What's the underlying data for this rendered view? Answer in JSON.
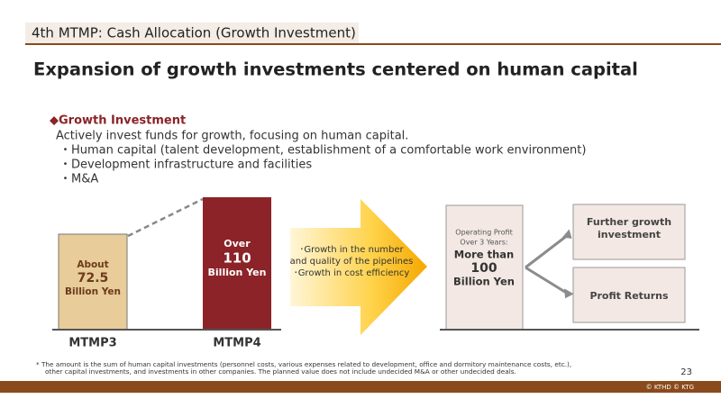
{
  "header": {
    "section": "4th MTMP: Cash Allocation (Growth Investment)",
    "title": "Expansion of growth investments centered on human capital"
  },
  "growth_investment": {
    "heading": "◆Growth Investment",
    "description": "Actively invest funds for growth, focusing on human capital.",
    "items": [
      "・Human capital (talent development, establishment of a comfortable work environment)",
      "・Development infrastructure and facilities",
      "・M&A"
    ]
  },
  "comparison": {
    "bars": [
      {
        "label": "MTMP3",
        "text": [
          "About",
          "72.5",
          "Billion Yen"
        ]
      },
      {
        "label": "MTMP4",
        "text": [
          "Over",
          "110",
          "Billion Yen"
        ]
      }
    ]
  },
  "arrow": {
    "lines": [
      "･Growth in the number",
      "and quality of the pipelines",
      "･Growth in cost efficiency"
    ]
  },
  "profit": {
    "lines": [
      "Operating Profit",
      "Over 3 Years:",
      "More than",
      "100",
      "Billion Yen"
    ],
    "allocations": [
      "Further growth investment",
      "Profit Returns"
    ]
  },
  "footnote": [
    "* The amount is the sum of human capital investments (personnel costs, various expenses related to development, office and dormitory maintenance costs, etc.),",
    "other capital investments, and investments in other companies. The planned value does not include undecided M&A or other undecided deals."
  ],
  "page_number": "23",
  "copyright": "© KTHD © KTG"
}
